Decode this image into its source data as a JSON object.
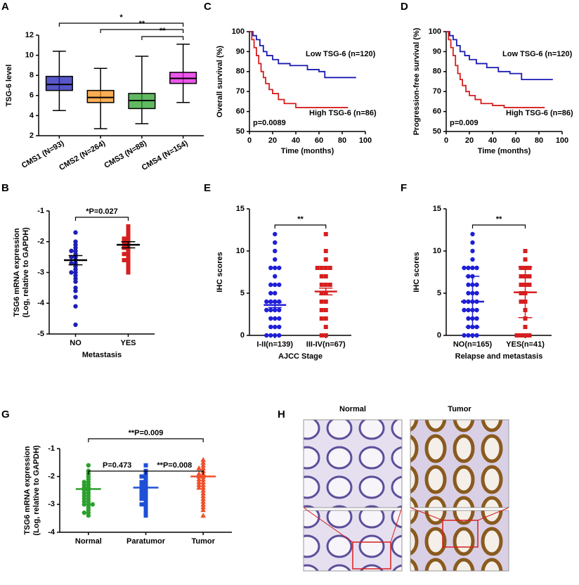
{
  "chart_data": [
    {
      "type": "box",
      "panel": "A",
      "ylabel": "TSG-6 level",
      "categories": [
        "CMS1 (N=93)",
        "CMS2 (N=264)",
        "CMS3 (N=88)",
        "CMS4 (N=154)"
      ],
      "colors": [
        "#1f1fb4",
        "#f7931e",
        "#2ca02c",
        "#e61ee6"
      ],
      "boxes": [
        {
          "min": 4.5,
          "q1": 6.5,
          "median": 7.1,
          "q3": 7.9,
          "max": 10.4
        },
        {
          "min": 2.7,
          "q1": 5.3,
          "median": 5.8,
          "q3": 6.5,
          "max": 8.7
        },
        {
          "min": 3.2,
          "q1": 4.7,
          "median": 5.5,
          "q3": 6.2,
          "max": 9.9
        },
        {
          "min": 5.3,
          "q1": 7.2,
          "median": 7.7,
          "q3": 8.3,
          "max": 11.1
        }
      ],
      "ylim": [
        2,
        12
      ],
      "yticks": [
        2,
        4,
        6,
        8,
        10,
        12
      ],
      "annotations": [
        "*",
        "**",
        "**"
      ]
    },
    {
      "type": "survival",
      "panel": "C",
      "ylabel": "Overall survival (%)",
      "xlabel": "Time (months)",
      "xlim": [
        0,
        100
      ],
      "xticks": [
        0,
        20,
        40,
        60,
        80,
        100
      ],
      "ylim": [
        50,
        100
      ],
      "yticks": [
        50,
        60,
        70,
        80,
        90,
        100
      ],
      "series": [
        {
          "name": "Low TSG-6 (n=120)",
          "color": "#1a1ab4",
          "x": [
            0,
            3,
            6,
            9,
            12,
            15,
            20,
            25,
            35,
            50,
            60,
            65,
            92
          ],
          "values": [
            100,
            98,
            96,
            93,
            90,
            88,
            86,
            84,
            83,
            81,
            80,
            77,
            77
          ]
        },
        {
          "name": "High TSG-6 (n=86)",
          "color": "#d61f1f",
          "x": [
            0,
            2,
            4,
            6,
            8,
            10,
            12,
            14,
            17,
            20,
            25,
            30,
            40,
            50,
            55,
            85
          ],
          "values": [
            100,
            96,
            92,
            88,
            84,
            80,
            77,
            74,
            71,
            69,
            66,
            64,
            62,
            62,
            62,
            62
          ]
        }
      ],
      "annotation": "p=0.0089"
    },
    {
      "type": "survival",
      "panel": "D",
      "ylabel": "Progression-free survival (%)",
      "xlabel": "Time (months)",
      "xlim": [
        0,
        100
      ],
      "xticks": [
        0,
        20,
        40,
        60,
        80,
        100
      ],
      "ylim": [
        50,
        100
      ],
      "yticks": [
        50,
        60,
        70,
        80,
        90,
        100
      ],
      "series": [
        {
          "name": "Low TSG-6 (n=120)",
          "color": "#1a1ab4",
          "x": [
            0,
            3,
            6,
            9,
            12,
            16,
            20,
            26,
            35,
            45,
            55,
            65,
            92
          ],
          "values": [
            100,
            98,
            96,
            93,
            90,
            88,
            86,
            84,
            82,
            80,
            79,
            76,
            76
          ]
        },
        {
          "name": "High TSG-6 (n=86)",
          "color": "#d61f1f",
          "x": [
            0,
            2,
            4,
            6,
            8,
            10,
            12,
            14,
            17,
            20,
            25,
            30,
            40,
            50,
            55,
            85
          ],
          "values": [
            100,
            96,
            92,
            88,
            83,
            79,
            76,
            73,
            70,
            68,
            66,
            64,
            63,
            62,
            62,
            62
          ]
        }
      ],
      "annotation": "p=0.009"
    },
    {
      "type": "dotplot",
      "panel": "B",
      "ylabel": [
        "TSG6 mRNA expression",
        "(Log, relative to GAPDH)"
      ],
      "xlabel": "Metastasis",
      "categories": [
        "NO",
        "YES"
      ],
      "colors": [
        "#1f1fb4",
        "#d61f1f"
      ],
      "markers": [
        "circle",
        "square"
      ],
      "mean_color": "#000000",
      "points": [
        [
          -1.7,
          -2.0,
          -2.1,
          -2.2,
          -2.3,
          -2.3,
          -2.4,
          -2.5,
          -2.5,
          -2.6,
          -2.7,
          -2.7,
          -2.8,
          -2.9,
          -3.0,
          -3.0,
          -3.1,
          -3.2,
          -3.3,
          -3.5,
          -3.6,
          -3.8,
          -4.1,
          -4.7
        ],
        [
          -1.5,
          -1.6,
          -1.7,
          -1.8,
          -1.9,
          -2.0,
          -2.0,
          -2.1,
          -2.1,
          -2.2,
          -2.2,
          -2.3,
          -2.4,
          -2.5,
          -2.6,
          -2.7,
          -2.8,
          -2.9,
          -3.0,
          -1.9,
          -2.4,
          -2.6
        ]
      ],
      "means": [
        -2.6,
        -2.1
      ],
      "errors": [
        0.15,
        0.1
      ],
      "ylim": [
        -5,
        -1
      ],
      "yticks": [
        -5,
        -4,
        -3,
        -2,
        -1
      ],
      "annotations": [
        "*P=0.027"
      ]
    },
    {
      "type": "dotplot",
      "panel": "E",
      "ylabel": [
        "IHC scores"
      ],
      "xlabel": "AJCC Stage",
      "categories": [
        "I-II(n=139)",
        "III-IV(n=67)"
      ],
      "colors": [
        "#1f1fd6",
        "#d61f1f"
      ],
      "markers": [
        "circle",
        "square"
      ],
      "points": [
        [
          0,
          0,
          0,
          0,
          1,
          1,
          1,
          2,
          2,
          2,
          3,
          3,
          3,
          3,
          4,
          4,
          4,
          4,
          5,
          5,
          6,
          6,
          6,
          7,
          8,
          8,
          8,
          9,
          10,
          11,
          12
        ],
        [
          0,
          0,
          1,
          2,
          2,
          3,
          3,
          4,
          4,
          5,
          5,
          6,
          6,
          6,
          7,
          7,
          8,
          8,
          8,
          8,
          9,
          10,
          12
        ]
      ],
      "means": [
        3.6,
        5.2
      ],
      "errors": [
        0.3,
        0.4
      ],
      "ylim": [
        0,
        15
      ],
      "yticks": [
        0,
        5,
        10,
        15
      ],
      "annotations": [
        "**"
      ]
    },
    {
      "type": "dotplot",
      "panel": "F",
      "ylabel": [
        "IHC scores"
      ],
      "xlabel": "Relapse and metastasis",
      "categories": [
        "NO(n=165)",
        "YES(n=41)"
      ],
      "colors": [
        "#1f1fd6",
        "#d61f1f"
      ],
      "markers": [
        "circle",
        "square"
      ],
      "points": [
        [
          0,
          0,
          0,
          0,
          1,
          1,
          1,
          2,
          2,
          2,
          3,
          3,
          3,
          3,
          4,
          4,
          4,
          4,
          5,
          5,
          5,
          6,
          6,
          6,
          7,
          7,
          8,
          8,
          8,
          8,
          9,
          10,
          11,
          12
        ],
        [
          0,
          0,
          0,
          0,
          1,
          2,
          3,
          4,
          4,
          5,
          5,
          6,
          6,
          6,
          7,
          7,
          7,
          8,
          8,
          8,
          9,
          10
        ]
      ],
      "means": [
        4.0,
        5.1
      ],
      "errors": [
        3.0,
        3.0
      ],
      "ylim": [
        0,
        15
      ],
      "yticks": [
        0,
        5,
        10,
        15
      ],
      "annotations": [
        "**"
      ]
    },
    {
      "type": "dotplot",
      "panel": "G",
      "ylabel": [
        "TSG6 mRNA expression",
        "(Log, relative to GAPDH)"
      ],
      "categories": [
        "Normal",
        "Paratumor",
        "Tumor"
      ],
      "colors": [
        "#2ca02c",
        "#1f4fd6",
        "#f0502a"
      ],
      "markers": [
        "circle",
        "square",
        "triangle"
      ],
      "points": [
        [
          -1.6,
          -1.8,
          -1.9,
          -2.0,
          -2.1,
          -2.2,
          -2.2,
          -2.3,
          -2.3,
          -2.4,
          -2.4,
          -2.5,
          -2.5,
          -2.6,
          -2.6,
          -2.7,
          -2.7,
          -2.8,
          -2.8,
          -2.9,
          -2.9,
          -3.0,
          -3.0,
          -3.0,
          -3.1,
          -3.2,
          -3.3,
          -3.3,
          -3.4
        ],
        [
          -1.6,
          -1.8,
          -1.9,
          -2.0,
          -2.0,
          -2.1,
          -2.2,
          -2.2,
          -2.3,
          -2.3,
          -2.4,
          -2.4,
          -2.5,
          -2.5,
          -2.6,
          -2.6,
          -2.7,
          -2.7,
          -2.8,
          -2.8,
          -2.9,
          -3.0,
          -3.0,
          -3.1,
          -3.2,
          -3.3,
          -3.4
        ],
        [
          -1.4,
          -1.5,
          -1.6,
          -1.7,
          -1.7,
          -1.8,
          -1.9,
          -1.9,
          -2.0,
          -2.0,
          -2.1,
          -2.1,
          -2.2,
          -2.2,
          -2.3,
          -2.3,
          -2.4,
          -2.4,
          -2.5,
          -2.6,
          -2.7,
          -2.8,
          -2.9,
          -3.0,
          -3.1,
          -3.2,
          -3.4
        ]
      ],
      "means": [
        -2.45,
        -2.4,
        -2.0
      ],
      "ylim": [
        -4,
        -1
      ],
      "yticks": [
        -4,
        -3,
        -2,
        -1
      ],
      "annotations": [
        "**P=0.009",
        "P=0.473",
        "**P=0.008"
      ]
    }
  ],
  "panel_h": {
    "label": "H",
    "columns": [
      "Normal",
      "Tumor"
    ]
  }
}
